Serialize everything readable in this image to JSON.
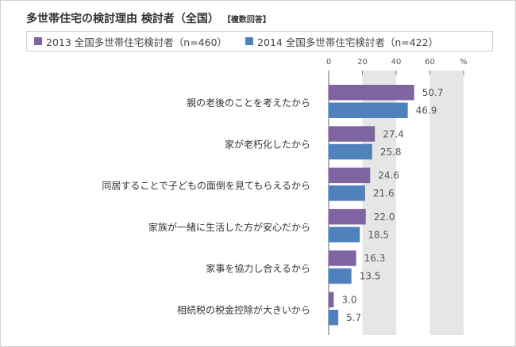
{
  "title": "多世帯住宅の検討理由 検討者（全国）",
  "subtitle": "【複数回答】",
  "chart_data": {
    "type": "bar",
    "orientation": "horizontal",
    "categories": [
      "親の老後のことを考えたから",
      "家が老朽化したから",
      "同居することで子どもの面倒を見てもらえるから",
      "家族が一緒に生活した方が安心だから",
      "家事を協力し合えるから",
      "相続税の税金控除が大きいから"
    ],
    "series": [
      {
        "name": "2013 全国多世帯住宅検討者（n=460）",
        "color": "#8064a2",
        "values": [
          50.7,
          27.4,
          24.6,
          22.0,
          16.3,
          3.0
        ]
      },
      {
        "name": "2014 全国多世帯住宅検討者（n=422）",
        "color": "#4f81bd",
        "values": [
          46.9,
          25.8,
          21.6,
          18.5,
          13.5,
          5.7
        ]
      }
    ],
    "xlim": [
      0,
      80
    ],
    "xticks": [
      "0",
      "20",
      "40",
      "60",
      "%"
    ],
    "legend": "top",
    "grid": "alternating bands"
  }
}
